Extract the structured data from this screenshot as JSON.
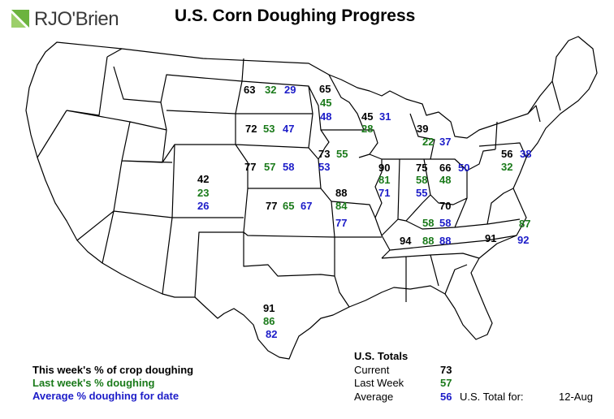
{
  "header": {
    "logo_text": "RJO'Brien",
    "title": "U.S. Corn Doughing Progress"
  },
  "colors": {
    "current": "#000000",
    "last_week": "#1a7a1a",
    "average": "#1c1cc8",
    "logo_green": "#6cb33f"
  },
  "states": [
    {
      "id": "ND",
      "current": "63",
      "last": "32",
      "avg": "29"
    },
    {
      "id": "MN",
      "current": "65",
      "last": "45",
      "avg": "48"
    },
    {
      "id": "SD",
      "current": "72",
      "last": "53",
      "avg": "47"
    },
    {
      "id": "WI",
      "current": "45",
      "last": "28",
      "avg": "31"
    },
    {
      "id": "MI",
      "current": "39",
      "last": "22",
      "avg": "37"
    },
    {
      "id": "IA",
      "current": "73",
      "last": "55",
      "avg": "53"
    },
    {
      "id": "NE",
      "current": "77",
      "last": "57",
      "avg": "58"
    },
    {
      "id": "CO",
      "current": "42",
      "last": "23",
      "avg": "26"
    },
    {
      "id": "KS",
      "current": "77",
      "last": "65",
      "avg": "67"
    },
    {
      "id": "MO",
      "current": "88",
      "last": "84",
      "avg": "77"
    },
    {
      "id": "IL",
      "current": "90",
      "last": "81",
      "avg": "71"
    },
    {
      "id": "IN",
      "current": "75",
      "last": "58",
      "avg": "55"
    },
    {
      "id": "OH",
      "current": "66",
      "last": "48",
      "avg": "50"
    },
    {
      "id": "PA",
      "current": "56",
      "last": "32",
      "avg": "38"
    },
    {
      "id": "KY",
      "current": "70",
      "last": "58",
      "avg": "58"
    },
    {
      "id": "TN",
      "current": "94",
      "last": "88",
      "avg": "88"
    },
    {
      "id": "NC",
      "current": "91",
      "last": "87",
      "avg": "92"
    },
    {
      "id": "TX",
      "current": "91",
      "last": "86",
      "avg": "82"
    }
  ],
  "legend": {
    "current": "This week's % of crop doughing",
    "last": "Last week's % doughing",
    "avg": "Average % doughing for date"
  },
  "totals": {
    "heading": "U.S. Totals",
    "current_label": "Current",
    "current_value": "73",
    "last_label": "Last Week",
    "last_value": "57",
    "avg_label": "Average",
    "avg_value": "56",
    "date_label": "U.S. Total for:",
    "date_value": "12-Aug"
  }
}
